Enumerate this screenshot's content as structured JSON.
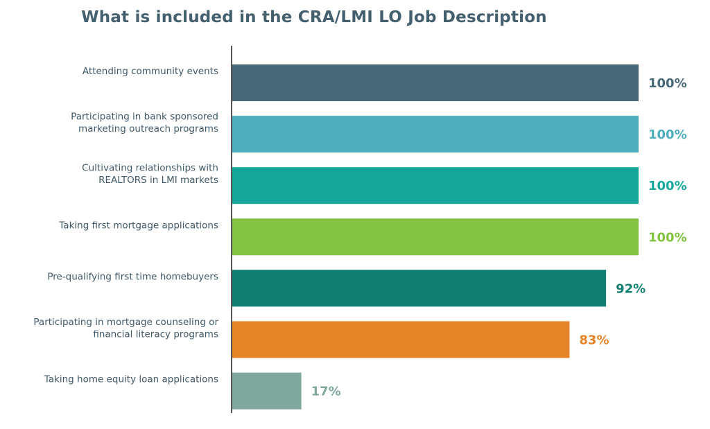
{
  "chart_data": {
    "type": "bar",
    "orientation": "horizontal",
    "title": "What is included in the CRA/LMI LO Job Description",
    "xlabel": "",
    "ylabel": "",
    "xlim": [
      0,
      100
    ],
    "grid": false,
    "legend": "none",
    "categories": [
      [
        "Attending community events"
      ],
      [
        "Participating in bank sponsored",
        "marketing outreach programs"
      ],
      [
        "Cultivating relationships with",
        "REALTORS in LMI markets"
      ],
      [
        "Taking first mortgage applications"
      ],
      [
        "Pre-qualifying first time homebuyers"
      ],
      [
        "Participating in mortgage counseling or",
        "financial literacy programs"
      ],
      [
        "Taking home equity loan applications"
      ]
    ],
    "values": [
      100,
      100,
      100,
      100,
      92,
      83,
      17
    ],
    "value_labels": [
      "100%",
      "100%",
      "100%",
      "100%",
      "92%",
      "83%",
      "17%"
    ],
    "colors": [
      "#476876",
      "#4eaebd",
      "#15a89a",
      "#82c341",
      "#107f70",
      "#e58427",
      "#7fa89f"
    ],
    "axis_color": "#555555"
  }
}
